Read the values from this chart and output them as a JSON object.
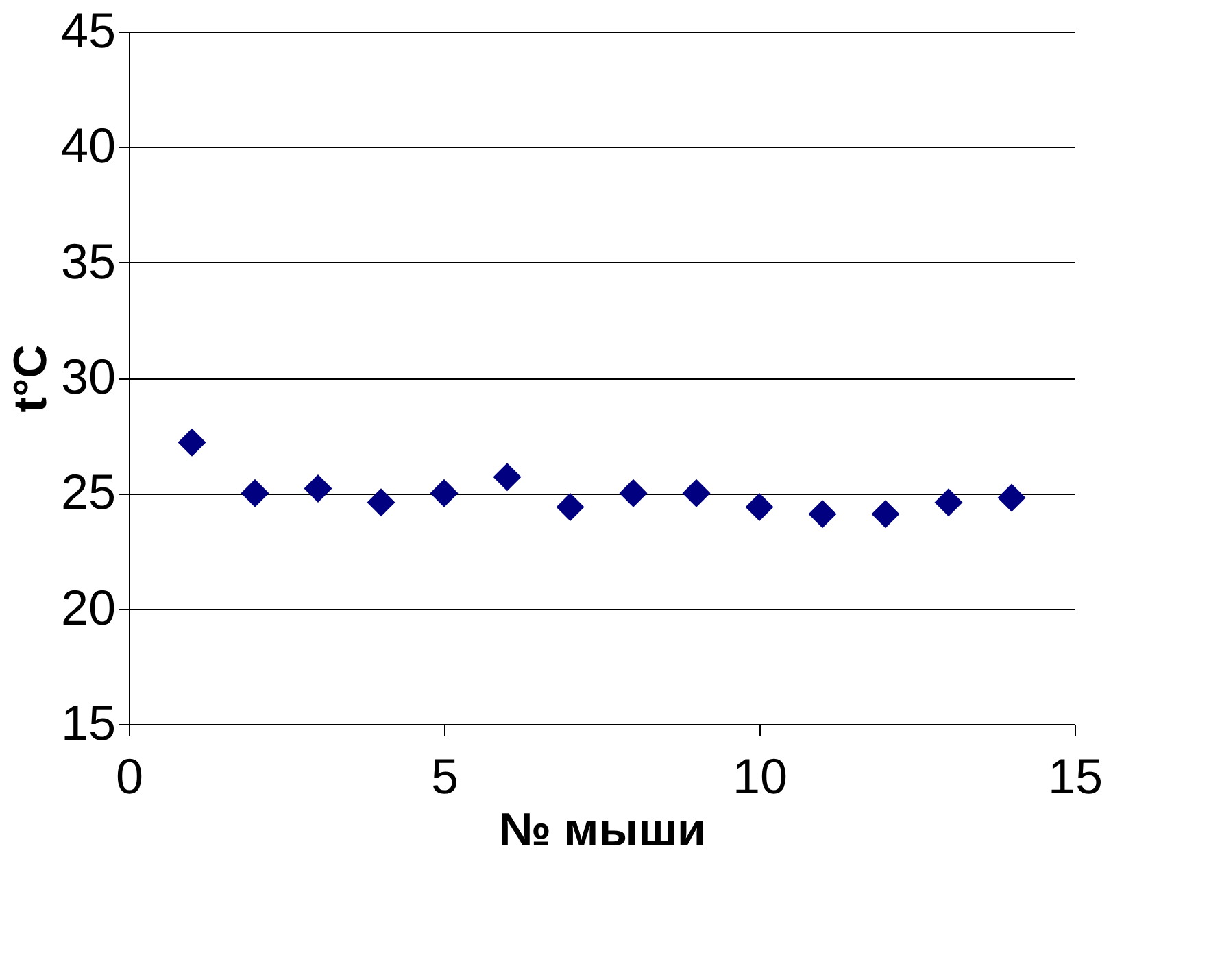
{
  "chart_data": {
    "type": "scatter",
    "xlabel": "№ мыши",
    "ylabel": "t°C",
    "x": [
      1,
      2,
      3,
      4,
      5,
      6,
      7,
      8,
      9,
      10,
      11,
      12,
      13,
      14
    ],
    "series": [
      {
        "color": "#000080",
        "values": [
          27.2,
          25.0,
          25.2,
          24.6,
          25.0,
          25.7,
          24.4,
          25.0,
          25.0,
          24.4,
          24.1,
          24.1,
          24.6,
          24.8
        ]
      }
    ],
    "xlim": [
      0,
      15
    ],
    "xticks": [
      0,
      5,
      10,
      15
    ],
    "ylim": [
      15,
      45
    ],
    "yticks": [
      15,
      20,
      25,
      30,
      35,
      40,
      45
    ],
    "grid": "y",
    "marker": "diamond",
    "legend": false
  }
}
